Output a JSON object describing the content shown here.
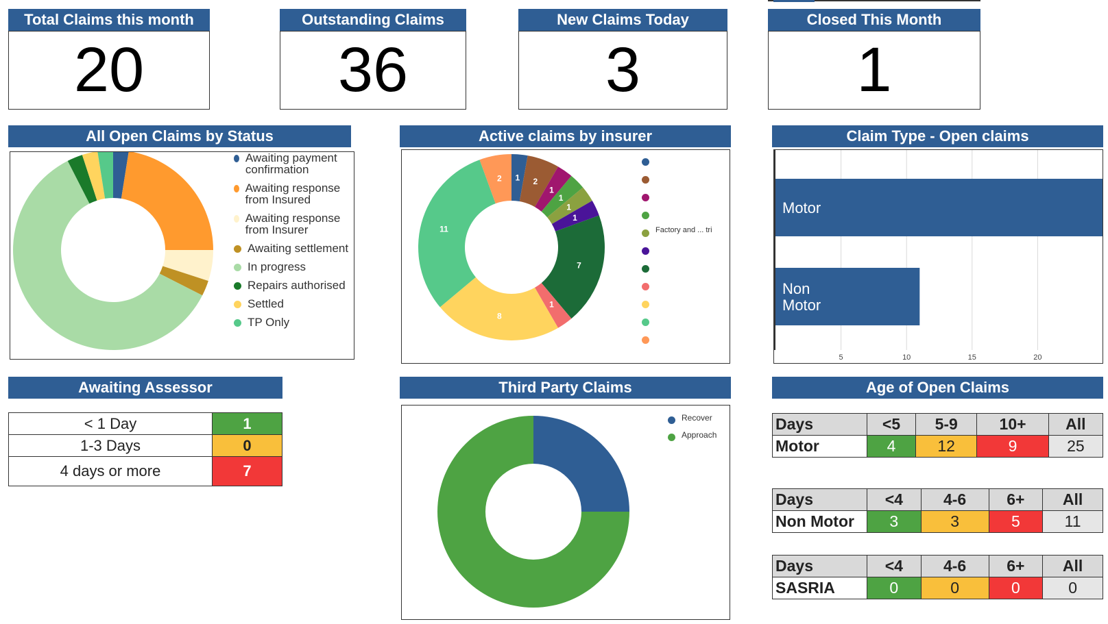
{
  "kpis": [
    {
      "title": "Total Claims this month",
      "value": "20"
    },
    {
      "title": "Outstanding Claims",
      "value": "36"
    },
    {
      "title": "New Claims Today",
      "value": "3"
    },
    {
      "title": "Closed This Month",
      "value": "1"
    }
  ],
  "status_chart": {
    "title": "All Open Claims by Status",
    "legend": [
      {
        "label": "Awaiting payment confirmation",
        "color": "#2f5e94"
      },
      {
        "label": "Awaiting response from Insured",
        "color": "#ff9a2e"
      },
      {
        "label": "Awaiting response from Insurer",
        "color": "#fff2cc"
      },
      {
        "label": "Awaiting settlement",
        "color": "#bf9124"
      },
      {
        "label": "In progress",
        "color": "#a9dba6"
      },
      {
        "label": "Repairs authorised",
        "color": "#1a7a2a"
      },
      {
        "label": "Settled",
        "color": "#ffd45e"
      },
      {
        "label": "TP Only",
        "color": "#56c98a"
      }
    ]
  },
  "insurer_chart": {
    "title": "Active claims by insurer",
    "legend": [
      {
        "label": "",
        "color": "#2f5e94"
      },
      {
        "label": "",
        "color": "#9b5b33"
      },
      {
        "label": "",
        "color": "#a0166e"
      },
      {
        "label": "",
        "color": "#4ea343"
      },
      {
        "label": "Factory and ... tri",
        "color": "#8ba140"
      },
      {
        "label": "",
        "color": "#4a1499"
      },
      {
        "label": "",
        "color": "#1c6b38"
      },
      {
        "label": "",
        "color": "#f26d6d"
      },
      {
        "label": "",
        "color": "#ffd45e"
      },
      {
        "label": "",
        "color": "#56c98a"
      },
      {
        "label": "",
        "color": "#ff9857"
      }
    ]
  },
  "claim_type_chart": {
    "title": "Claim Type - Open claims",
    "ticks": [
      "5",
      "10",
      "15",
      "20"
    ]
  },
  "assessor": {
    "title": "Awaiting Assessor",
    "rows": [
      {
        "label": "< 1 Day",
        "value": "1",
        "status": "green"
      },
      {
        "label": "1-3 Days",
        "value": "0",
        "status": "yellow"
      },
      {
        "label": "4 days or more",
        "value": "7",
        "status": "red"
      }
    ]
  },
  "third_party_chart": {
    "title": "Third Party Claims",
    "legend": [
      {
        "label": "Recover",
        "color": "#2f5e94"
      },
      {
        "label": "Approach",
        "color": "#4ea343"
      }
    ]
  },
  "age": {
    "title": "Age of Open Claims",
    "tables": [
      {
        "header": [
          "Days",
          "<5",
          "5-9",
          "10+",
          "All"
        ],
        "row": [
          "Motor",
          "4",
          "12",
          "9",
          "25"
        ]
      },
      {
        "header": [
          "Days",
          "<4",
          "4-6",
          "6+",
          "All"
        ],
        "row": [
          "Non Motor",
          "3",
          "3",
          "5",
          "11"
        ]
      },
      {
        "header": [
          "Days",
          "<4",
          "4-6",
          "6+",
          "All"
        ],
        "row": [
          "SASRIA",
          "0",
          "0",
          "0",
          "0"
        ]
      }
    ]
  },
  "chart_data": [
    {
      "type": "pie",
      "title": "All Open Claims by Status",
      "categories": [
        "Awaiting payment confirmation",
        "Awaiting response from Insured",
        "Awaiting response from Insurer",
        "Awaiting settlement",
        "In progress",
        "Repairs authorised",
        "Settled",
        "TP Only"
      ],
      "values": [
        1,
        9,
        2,
        1,
        24,
        1,
        1,
        1
      ]
    },
    {
      "type": "pie",
      "title": "Active claims by insurer",
      "categories": [
        "",
        "",
        "",
        "",
        "Factory and ... tri",
        "",
        "",
        "",
        "",
        "",
        ""
      ],
      "values": [
        1,
        2,
        1,
        1,
        1,
        1,
        7,
        1,
        8,
        11,
        2
      ],
      "data_labels": [
        "1",
        "2",
        "1",
        "1",
        "1",
        "1",
        "7",
        "1",
        "8",
        "11",
        "2"
      ]
    },
    {
      "type": "bar",
      "title": "Claim Type - Open claims",
      "categories": [
        "Motor",
        "Non Motor"
      ],
      "values": [
        25,
        11
      ],
      "orientation": "horizontal",
      "xlim": [
        0,
        25
      ]
    },
    {
      "type": "pie",
      "title": "Third Party Claims",
      "categories": [
        "Recover",
        "Approach"
      ],
      "values": [
        1,
        3
      ]
    }
  ]
}
